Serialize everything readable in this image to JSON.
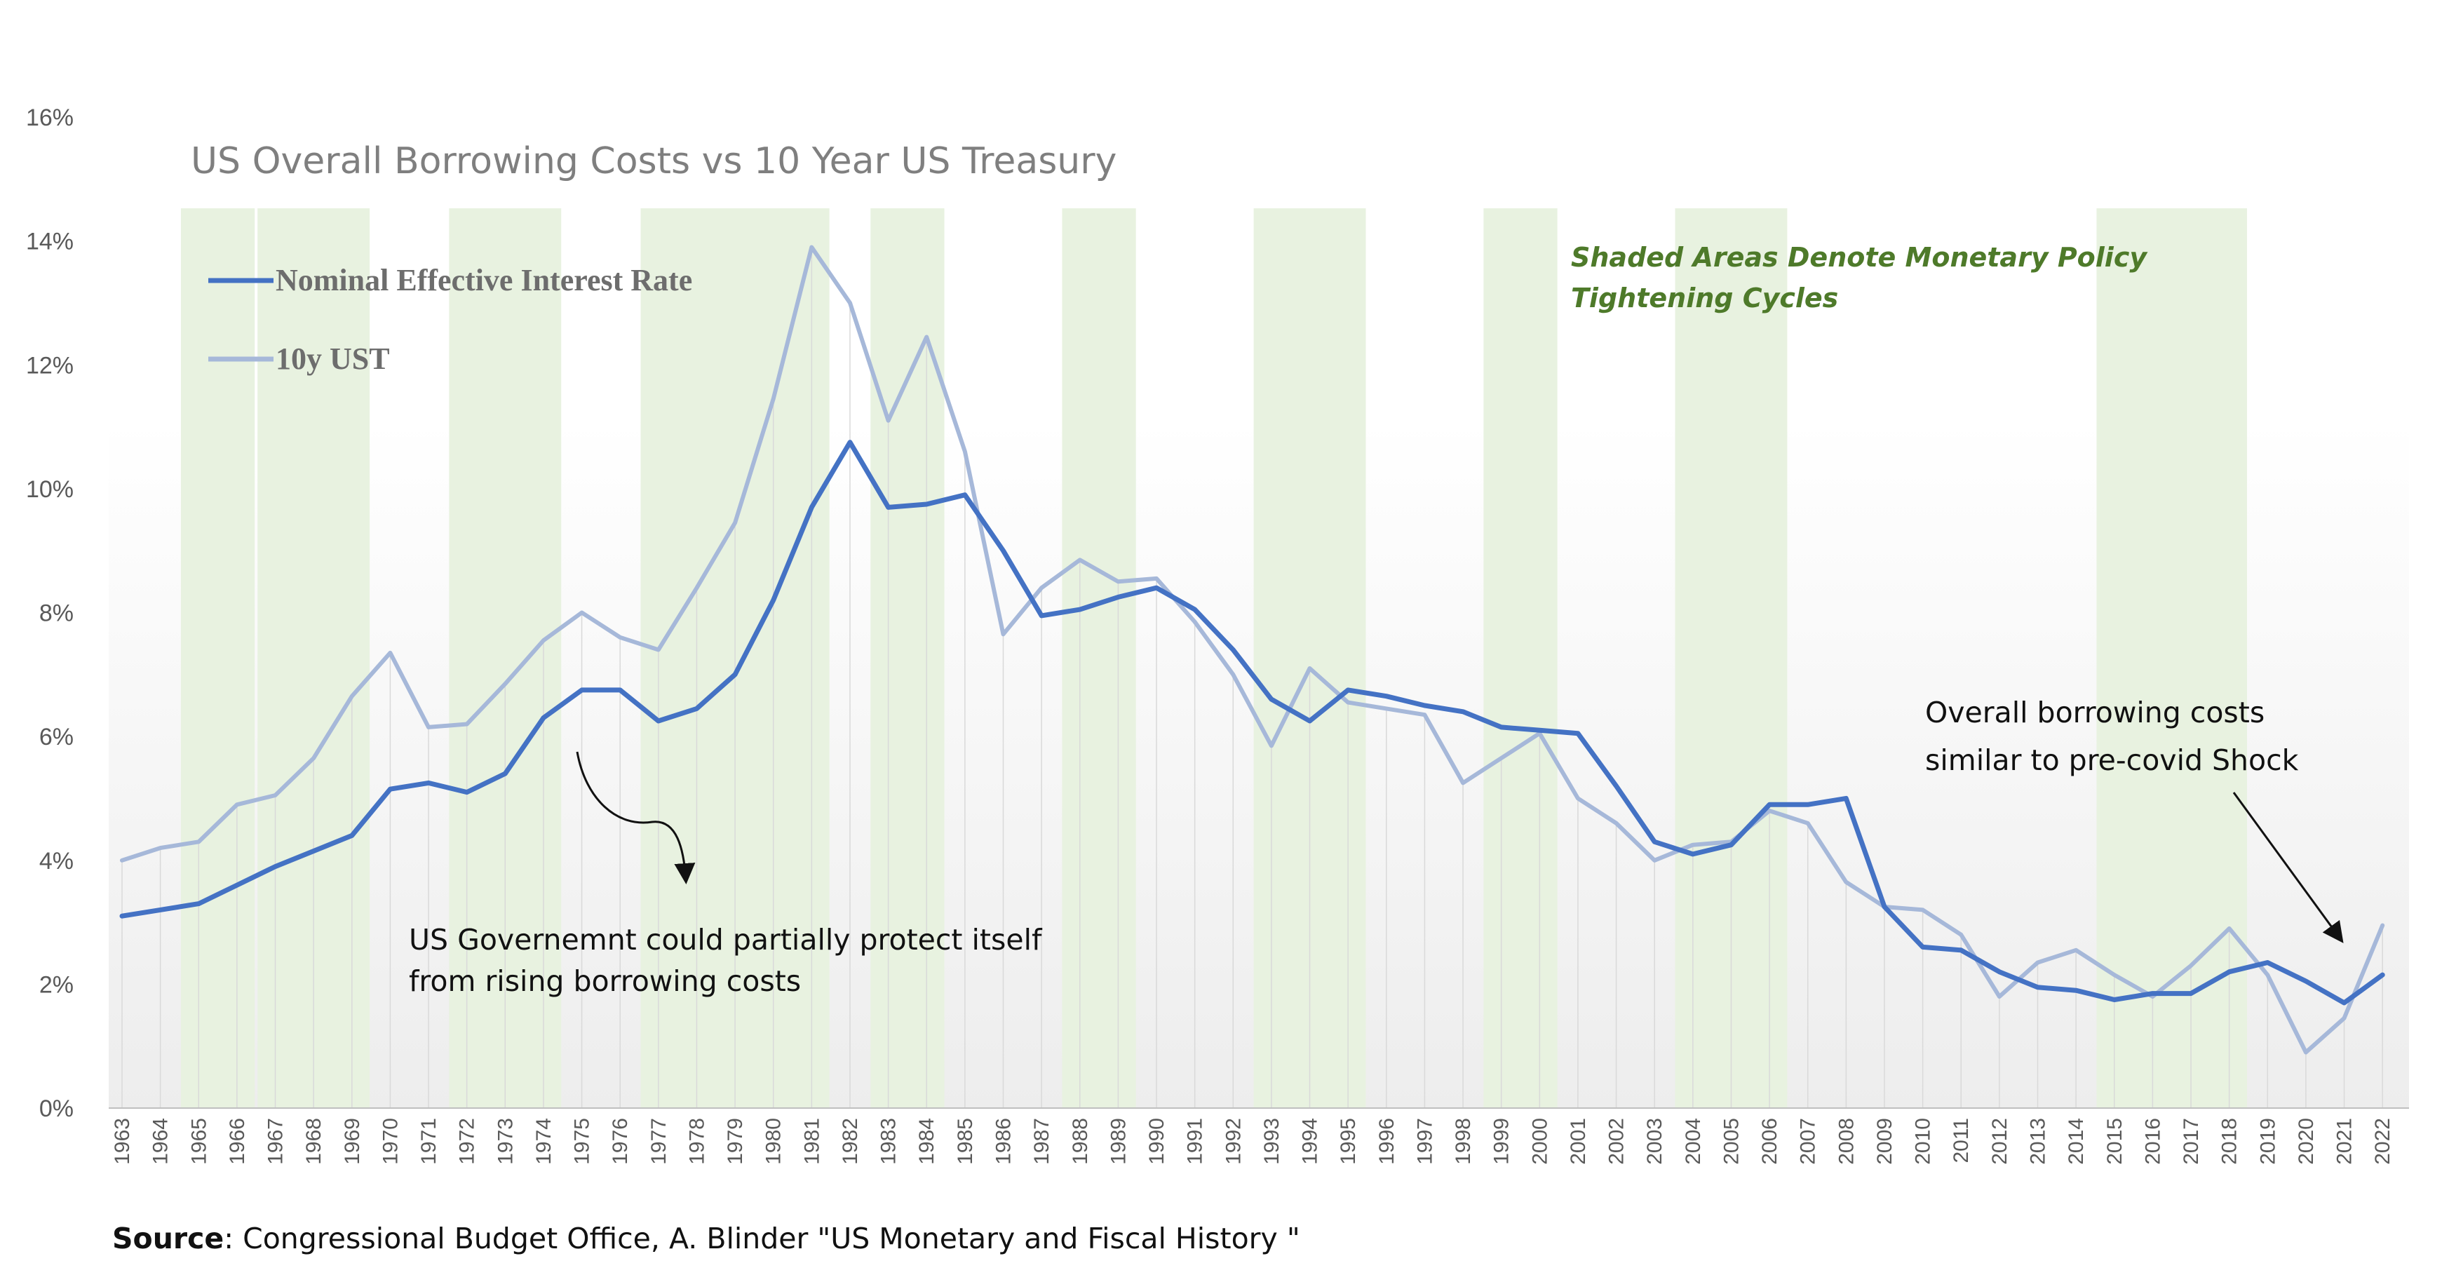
{
  "chart_data": {
    "type": "line",
    "title": "US Overall Borrowing Costs vs 10 Year US Treasury",
    "xlabel": "",
    "ylabel": "",
    "ylim": [
      0,
      16
    ],
    "y_ticks": [
      "0%",
      "2%",
      "4%",
      "6%",
      "8%",
      "10%",
      "12%",
      "14%",
      "16%"
    ],
    "x": [
      "1963",
      "1964",
      "1965",
      "1966",
      "1967",
      "1968",
      "1969",
      "1970",
      "1971",
      "1972",
      "1973",
      "1974",
      "1975",
      "1976",
      "1977",
      "1978",
      "1979",
      "1980",
      "1981",
      "1982",
      "1983",
      "1984",
      "1985",
      "1986",
      "1987",
      "1988",
      "1989",
      "1990",
      "1991",
      "1992",
      "1993",
      "1994",
      "1995",
      "1996",
      "1997",
      "1998",
      "1999",
      "2000",
      "2001",
      "2002",
      "2003",
      "2004",
      "2005",
      "2006",
      "2007",
      "2008",
      "2009",
      "2010",
      "2011",
      "2012",
      "2013",
      "2014",
      "2015",
      "2016",
      "2017",
      "2018",
      "2019",
      "2020",
      "2021",
      "2022"
    ],
    "series": [
      {
        "name": "Nominal Effective Interest Rate",
        "color": "#4472c4",
        "values": [
          3.1,
          3.2,
          3.3,
          3.6,
          3.9,
          4.15,
          4.4,
          5.15,
          5.25,
          5.1,
          5.4,
          6.3,
          6.75,
          6.75,
          6.25,
          6.45,
          7.0,
          8.2,
          9.7,
          10.75,
          9.7,
          9.75,
          9.9,
          9.0,
          7.95,
          8.05,
          8.25,
          8.4,
          8.05,
          7.4,
          6.6,
          6.25,
          6.75,
          6.65,
          6.5,
          6.4,
          6.15,
          6.1,
          6.05,
          5.2,
          4.3,
          4.1,
          4.25,
          4.9,
          4.9,
          5.0,
          3.25,
          2.6,
          2.55,
          2.2,
          1.95,
          1.9,
          1.75,
          1.85,
          1.85,
          2.2,
          2.35,
          2.05,
          1.7,
          2.15
        ]
      },
      {
        "name": "10y UST",
        "color": "#a6b8d9",
        "values": [
          4.0,
          4.2,
          4.3,
          4.9,
          5.05,
          5.65,
          6.65,
          7.35,
          6.15,
          6.2,
          6.85,
          7.55,
          8.0,
          7.6,
          7.4,
          8.4,
          9.45,
          11.45,
          13.9,
          13.0,
          11.1,
          12.45,
          10.6,
          7.65,
          8.4,
          8.85,
          8.5,
          8.55,
          7.85,
          7.0,
          5.85,
          7.1,
          6.55,
          6.45,
          6.35,
          5.25,
          5.65,
          6.05,
          5.0,
          4.6,
          4.0,
          4.25,
          4.3,
          4.8,
          4.6,
          3.65,
          3.25,
          3.2,
          2.8,
          1.8,
          2.35,
          2.55,
          2.15,
          1.8,
          2.3,
          2.9,
          2.15,
          0.9,
          1.45,
          2.95
        ]
      }
    ],
    "shaded_ranges": [
      [
        "1965",
        "1966"
      ],
      [
        "1967",
        "1969"
      ],
      [
        "1972",
        "1974"
      ],
      [
        "1977",
        "1981"
      ],
      [
        "1983",
        "1984"
      ],
      [
        "1988",
        "1989"
      ],
      [
        "1993",
        "1995"
      ],
      [
        "1999",
        "2000"
      ],
      [
        "2004",
        "2006"
      ],
      [
        "2015",
        "2018"
      ]
    ],
    "shade_color": "#e8f2e0",
    "grid": false,
    "legend_position": "top-left",
    "annotations": {
      "shade_note": [
        "Shaded Areas Denote Monetary Policy",
        "Tightening Cycles"
      ],
      "protect_note": [
        "US Governemnt could partially protect itself",
        "from rising borrowing costs"
      ],
      "covid_note": [
        "Overall borrowing costs",
        "similar to pre-covid Shock"
      ]
    },
    "source_label": "Source",
    "source_text": ": Congressional Budget Office, A. Blinder \"US Monetary and Fiscal History \""
  }
}
